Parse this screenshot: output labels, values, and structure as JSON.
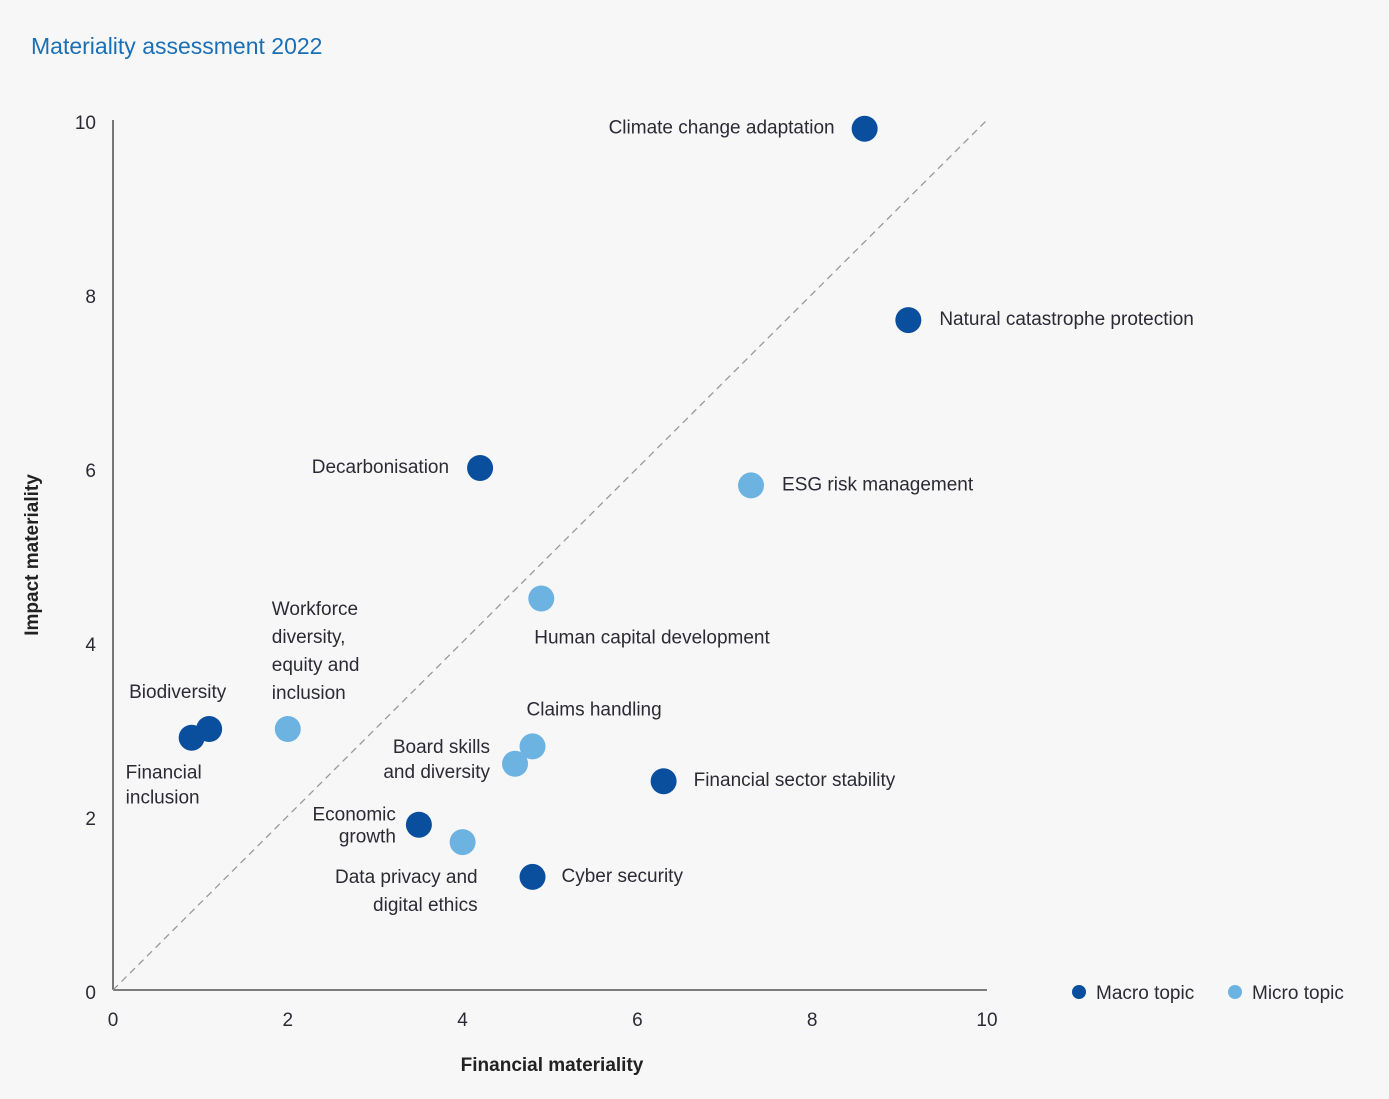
{
  "chart_data": {
    "type": "scatter",
    "title": "Materiality assessment 2022",
    "xlabel": "Financial materiality",
    "ylabel": "Impact materiality",
    "xlim": [
      0,
      10
    ],
    "ylim": [
      0,
      10
    ],
    "xticks": [
      0,
      2,
      4,
      6,
      8,
      10
    ],
    "yticks": [
      0,
      2,
      4,
      6,
      8,
      10
    ],
    "grid": false,
    "reference_line": "diagonal y = x (dashed)",
    "legend": {
      "placement": "bottom-right",
      "entries": [
        {
          "name": "Macro topic",
          "color": "#0a4f9e"
        },
        {
          "name": "Micro topic",
          "color": "#6db3e2"
        }
      ]
    },
    "points": [
      {
        "label": [
          "Climate change adaptation"
        ],
        "x": 8.6,
        "y": 9.9,
        "series": "Macro topic"
      },
      {
        "label": [
          "Natural catastrophe protection"
        ],
        "x": 9.1,
        "y": 7.7,
        "series": "Macro topic"
      },
      {
        "label": [
          "Decarbonisation"
        ],
        "x": 4.2,
        "y": 6.0,
        "series": "Macro topic"
      },
      {
        "label": [
          "ESG risk management"
        ],
        "x": 7.3,
        "y": 5.8,
        "series": "Micro topic"
      },
      {
        "label": [
          "Human capital development"
        ],
        "x": 4.9,
        "y": 4.5,
        "series": "Micro topic"
      },
      {
        "label": [
          "Workforce",
          "diversity,",
          "equity and",
          "inclusion"
        ],
        "x": 2.0,
        "y": 3.0,
        "series": "Micro topic"
      },
      {
        "label": [
          "Biodiversity"
        ],
        "x": 1.1,
        "y": 3.0,
        "series": "Macro topic"
      },
      {
        "label": [
          "Financial",
          "inclusion"
        ],
        "x": 0.9,
        "y": 2.9,
        "series": "Macro topic"
      },
      {
        "label": [
          "Claims handling"
        ],
        "x": 4.8,
        "y": 2.8,
        "series": "Micro topic"
      },
      {
        "label": [
          "Board skills",
          "and diversity"
        ],
        "x": 4.6,
        "y": 2.6,
        "series": "Micro topic"
      },
      {
        "label": [
          "Financial sector stability"
        ],
        "x": 6.3,
        "y": 2.4,
        "series": "Macro topic"
      },
      {
        "label": [
          "Economic",
          "growth"
        ],
        "x": 3.5,
        "y": 1.9,
        "series": "Macro topic"
      },
      {
        "label": [
          "Data privacy and",
          "digital ethics"
        ],
        "x": 4.0,
        "y": 1.7,
        "series": "Micro topic"
      },
      {
        "label": [
          "Cyber security"
        ],
        "x": 4.8,
        "y": 1.3,
        "series": "Macro topic"
      }
    ]
  }
}
